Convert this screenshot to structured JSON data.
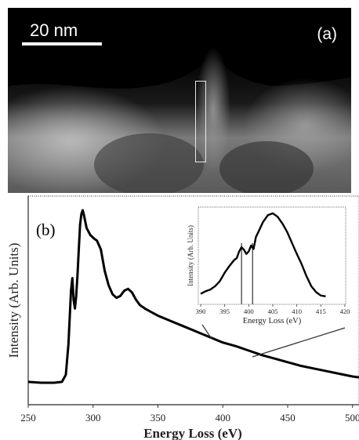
{
  "panel_a": {
    "label": "(a)",
    "scale_bar_label": "20 nm"
  },
  "chart_data": [
    {
      "type": "line",
      "panel_label": "(b)",
      "xlabel": "Energy Loss (eV)",
      "ylabel": "Intensity (Arb. Units)",
      "xlim": [
        250,
        505
      ],
      "xticks": [
        250,
        300,
        350,
        400,
        450,
        500
      ],
      "yticks_shown": false,
      "series": [
        {
          "x": [
            250,
            260,
            270,
            276,
            279,
            281,
            283,
            284,
            285,
            286,
            287,
            288,
            289,
            290,
            291,
            292,
            293,
            295,
            298,
            301,
            303,
            306,
            309,
            312,
            315,
            318,
            321,
            324,
            327,
            330,
            333,
            336,
            340,
            345,
            350,
            360,
            370,
            380,
            390,
            400,
            410,
            420,
            430,
            440,
            450,
            460,
            470,
            480,
            490,
            500,
            505
          ],
          "y": [
            0.04,
            0.035,
            0.035,
            0.04,
            0.08,
            0.25,
            0.55,
            0.62,
            0.5,
            0.45,
            0.52,
            0.64,
            0.78,
            0.92,
            0.98,
            1.0,
            0.97,
            0.9,
            0.86,
            0.84,
            0.83,
            0.78,
            0.66,
            0.58,
            0.53,
            0.51,
            0.52,
            0.55,
            0.56,
            0.54,
            0.5,
            0.47,
            0.45,
            0.43,
            0.41,
            0.38,
            0.35,
            0.32,
            0.29,
            0.26,
            0.24,
            0.215,
            0.19,
            0.17,
            0.15,
            0.13,
            0.115,
            0.1,
            0.085,
            0.07,
            0.065
          ]
        }
      ]
    },
    {
      "type": "line",
      "role": "inset",
      "xlabel": "Energy Loss (eV)",
      "ylabel": "Intensity (Arb. Units)",
      "xlim": [
        390,
        420
      ],
      "xticks": [
        390,
        395,
        400,
        405,
        410,
        415,
        420
      ],
      "yticks_shown": false,
      "vertical_markers": [
        398.5,
        400.8
      ],
      "series": [
        {
          "x": [
            390,
            391,
            392,
            393,
            394,
            395,
            396,
            397,
            397.5,
            398,
            398.5,
            399,
            399.5,
            400,
            400.5,
            401,
            401.5,
            402,
            403,
            404,
            405,
            406,
            407,
            408,
            409,
            410,
            411,
            412,
            413,
            414,
            415,
            416
          ],
          "y": [
            0.05,
            0.08,
            0.1,
            0.14,
            0.2,
            0.3,
            0.38,
            0.45,
            0.47,
            0.55,
            0.6,
            0.57,
            0.52,
            0.55,
            0.62,
            0.58,
            0.72,
            0.78,
            0.9,
            0.98,
            1.0,
            0.96,
            0.88,
            0.78,
            0.65,
            0.52,
            0.4,
            0.26,
            0.14,
            0.07,
            0.03,
            0.02
          ]
        }
      ]
    }
  ]
}
